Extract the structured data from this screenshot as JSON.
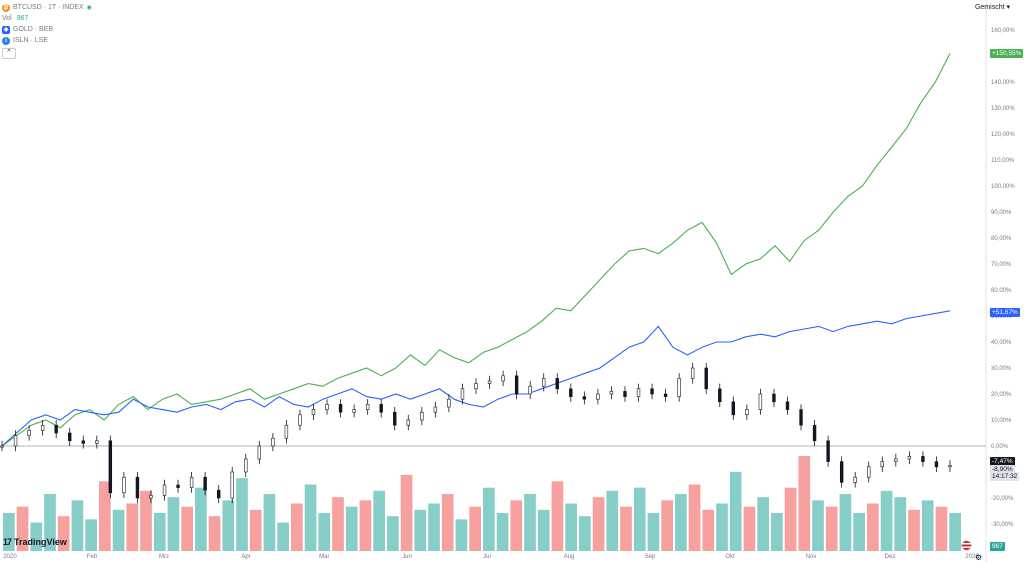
{
  "legend": {
    "main": {
      "icon": "bitcoin-icon",
      "text": "BTCUSD · 1T · INDEX",
      "color": "#f7931a"
    },
    "vol_label": "Vol",
    "vol_value": "967",
    "compare": [
      {
        "icon": "gold-icon",
        "text": "GOLD · BEB",
        "color": "#2962ff"
      },
      {
        "icon": "info-icon",
        "text": "ISLN · LSE",
        "color": "#1e88e5"
      }
    ],
    "collapse": "^"
  },
  "scale_mode": "Gemischt",
  "y_ticks": [
    "160,00%",
    "150,00%",
    "140,00%",
    "130,00%",
    "120,00%",
    "110,00%",
    "100,00%",
    "90,00%",
    "80,00%",
    "70,00%",
    "60,00%",
    "50,00%",
    "40,00%",
    "30,00%",
    "20,00%",
    "10,00%",
    "0,00%",
    "-10,00%",
    "-20,00%",
    "-30,00%"
  ],
  "y_values": [
    160,
    150,
    140,
    130,
    120,
    110,
    100,
    90,
    80,
    70,
    60,
    50,
    40,
    30,
    20,
    10,
    0,
    -10,
    -20,
    -30
  ],
  "x_labels": [
    "2020",
    "Feb",
    "Mrz",
    "Apr",
    "Mai",
    "Jun",
    "Jul",
    "Aug",
    "Sep",
    "Okt",
    "Nov",
    "Dez",
    "2026"
  ],
  "price_labels": {
    "green": "+150,55%",
    "blue": "+51,67%",
    "black": "-7,47%",
    "black2": "-8,90%",
    "time": "14:17:32",
    "vol": "967"
  },
  "colors": {
    "green": "#4caf50",
    "blue": "#2962ff",
    "black": "#131722",
    "vol_up": "#26a69a",
    "vol_down": "#ef5350"
  },
  "brand": "TradingView",
  "chart_data": {
    "type": "line",
    "xlabel": "",
    "ylabel": "",
    "ylim": [
      -35,
      162
    ],
    "series": [
      {
        "name": "GOLD · BEB",
        "style": "line",
        "values": [
          0,
          4,
          8,
          10,
          7,
          12,
          14,
          10,
          16,
          19,
          14,
          18,
          20,
          16,
          17,
          18,
          20,
          22,
          18,
          20,
          22,
          24,
          23,
          26,
          28,
          30,
          27,
          30,
          35,
          31,
          37,
          34,
          32,
          36,
          38,
          41,
          44,
          48,
          53,
          52,
          58,
          64,
          70,
          75,
          76,
          74,
          78,
          83,
          86,
          78,
          66,
          70,
          72,
          77,
          71,
          79,
          83,
          90,
          96,
          100,
          108,
          115,
          122,
          132,
          140,
          151
        ]
      },
      {
        "name": "ISLN · LSE",
        "style": "line",
        "values": [
          0,
          5,
          10,
          12,
          10,
          14,
          13,
          12,
          13,
          18,
          15,
          14,
          13,
          15,
          16,
          14,
          17,
          18,
          15,
          19,
          16,
          15,
          18,
          20,
          22,
          19,
          18,
          20,
          18,
          20,
          22,
          18,
          16,
          15,
          18,
          20,
          20,
          22,
          24,
          26,
          28,
          30,
          34,
          38,
          40,
          46,
          38,
          35,
          38,
          40,
          40,
          42,
          43,
          42,
          44,
          45,
          46,
          44,
          46,
          47,
          48,
          47,
          49,
          50,
          51,
          52
        ]
      },
      {
        "name": "BTCUSD · 1T · INDEX",
        "style": "candles",
        "values": [
          0,
          4,
          6,
          8,
          5,
          2,
          1,
          2,
          -18,
          -12,
          -20,
          -19,
          -15,
          -16,
          -12,
          -17,
          -20,
          -10,
          -5,
          0,
          3,
          8,
          12,
          14,
          16,
          13,
          14,
          16,
          13,
          8,
          10,
          13,
          15,
          18,
          22,
          24,
          25,
          27,
          20,
          23,
          26,
          22,
          19,
          18,
          20,
          21,
          19,
          22,
          20,
          19,
          26,
          30,
          22,
          17,
          12,
          14,
          20,
          17,
          14,
          8,
          2,
          -6,
          -14,
          -12,
          -8,
          -6,
          -5,
          -4,
          -6,
          -8,
          -7.5
        ]
      }
    ],
    "volume": [
      12,
      14,
      9,
      18,
      11,
      16,
      10,
      22,
      13,
      15,
      19,
      12,
      17,
      14,
      20,
      11,
      16,
      23,
      13,
      18,
      9,
      15,
      21,
      12,
      17,
      14,
      16,
      19,
      11,
      24,
      13,
      15,
      18,
      10,
      14,
      20,
      12,
      16,
      18,
      13,
      22,
      15,
      11,
      17,
      19,
      14,
      20,
      12,
      16,
      18,
      21,
      13,
      15,
      25,
      14,
      17,
      12,
      20,
      30,
      16,
      14,
      18,
      12,
      15,
      19,
      17,
      13,
      16,
      14,
      12
    ],
    "volume_up_mask": [
      1,
      0,
      1,
      1,
      0,
      1,
      1,
      0,
      1,
      0,
      0,
      1,
      1,
      0,
      1,
      0,
      1,
      1,
      0,
      1,
      1,
      0,
      1,
      1,
      0,
      1,
      0,
      1,
      1,
      0,
      1,
      1,
      0,
      1,
      0,
      1,
      1,
      0,
      1,
      1,
      0,
      1,
      1,
      0,
      1,
      0,
      1,
      1,
      0,
      1,
      0,
      0,
      1,
      1,
      0,
      1,
      1,
      0,
      0,
      1,
      0,
      1,
      1,
      0,
      1,
      1,
      0,
      1,
      0,
      1
    ]
  }
}
